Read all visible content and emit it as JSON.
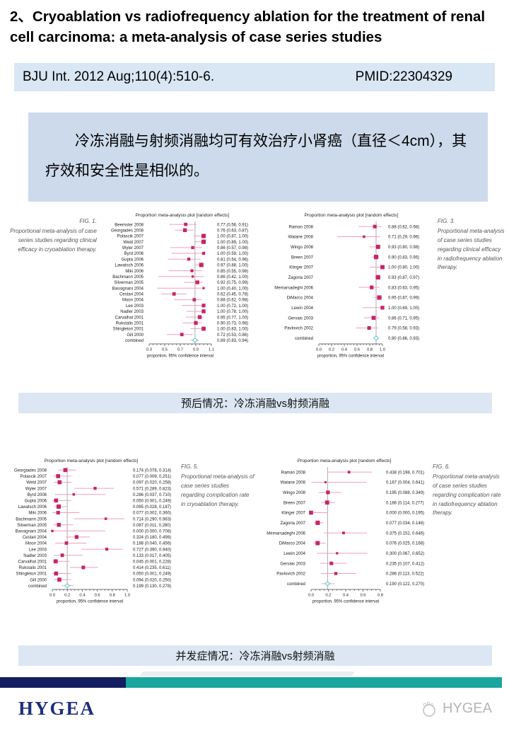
{
  "page": {
    "title": "2、Cryoablation vs radiofrequency ablation for the treatment of renal cell carcinoma: a meta-analysis of case series studies",
    "citation": "BJU Int. 2012 Aug;110(4):510-6.",
    "pmid": "PMID:22304329",
    "summary": "冷冻消融与射频消融均可有效治疗小肾癌（直径＜4cm），其疗效和安全性是相似的。",
    "band1": "预后情况：冷冻消融vs射频消融",
    "band2": "并发症情况：冷冻消融vs射频消融",
    "footer_logo": "HYGEA",
    "watermark": "HYGEA"
  },
  "colors": {
    "marker": "#c4266a",
    "ci_line": "#ef9ec0",
    "combined_diamond": "#5fc1c1",
    "axis": "#444444",
    "ref_line": "#888888",
    "band_bg": "#dce7f3",
    "citation_bg": "#d9e6f3",
    "summary_bg": "#ccdaeb",
    "footer_navy": "#131d60",
    "footer_teal": "#18a69e",
    "logo_navy": "#1e2f7d",
    "watermark_gray": "#b5b5b5"
  },
  "chart_data": [
    {
      "id": "fig1",
      "type": "forest",
      "fig": "FIG. 1.",
      "caption": "Proportional meta-analysis of case series studies regarding clinical efficacy in cryoablation therapy.",
      "title": "Proportion meta-analysis plot [random effects]",
      "xlabel": "proportion, 95% confidence interval",
      "xlim": [
        0.3,
        1.1
      ],
      "xticks": [
        0.3,
        0.5,
        0.7,
        0.9,
        1.1
      ],
      "rows": [
        [
          "Beemster 2008",
          0.77,
          0.56,
          0.91,
          "0.77 (0.56, 0.91)"
        ],
        [
          "Georgiades 2008",
          0.76,
          0.63,
          0.87,
          "0.76 (0.63, 0.87)"
        ],
        [
          "Polascik 2007",
          1.0,
          0.87,
          1.0,
          "1.00 (0.87, 1.00)"
        ],
        [
          "Weld 2007",
          1.0,
          0.89,
          1.0,
          "1.00 (0.89, 1.00)"
        ],
        [
          "Wyler 2007",
          0.86,
          0.57,
          0.98,
          "0.86 (0.57, 0.98)"
        ],
        [
          "Byrd 2006",
          1.0,
          0.59,
          1.0,
          "1.00 (0.59, 1.00)"
        ],
        [
          "Gupta 2006",
          0.81,
          0.54,
          0.96,
          "0.81 (0.54, 0.96)"
        ],
        [
          "Lawatsch 2006",
          0.97,
          0.88,
          1.0,
          "0.97 (0.88, 1.00)"
        ],
        [
          "Miki 2006",
          0.85,
          0.55,
          0.98,
          "0.85 (0.55, 0.98)"
        ],
        [
          "Bachmann 2005",
          0.86,
          0.42,
          1.0,
          "0.86 (0.42, 1.00)"
        ],
        [
          "Silverman 2005",
          0.92,
          0.75,
          0.99,
          "0.92 (0.75, 0.99)"
        ],
        [
          "Bassignani 2004",
          1.0,
          0.4,
          1.0,
          "1.00 (0.40, 1.00)"
        ],
        [
          "Cestari 2004",
          0.62,
          0.45,
          0.78,
          "0.62 (0.45, 0.78)"
        ],
        [
          "Moon 2004",
          0.88,
          0.62,
          0.98,
          "0.88 (0.62, 0.98)"
        ],
        [
          "Lee 2003",
          1.0,
          0.72,
          1.0,
          "1.00 (0.72, 1.00)"
        ],
        [
          "Nadler 2003",
          1.0,
          0.78,
          1.0,
          "1.00 (0.78, 1.00)"
        ],
        [
          "Carvalhal 2001",
          0.95,
          0.77,
          1.0,
          "0.95 (0.77, 1.00)"
        ],
        [
          "Rukstalis 2001",
          0.9,
          0.73,
          0.98,
          "0.90 (0.73, 0.98)"
        ],
        [
          "Shingleton 2001",
          1.0,
          0.83,
          1.0,
          "1.00 (0.83, 1.00)"
        ],
        [
          "Gill 2000",
          0.72,
          0.53,
          0.86,
          "0.72 (0.53, 0.86)"
        ],
        [
          "combined",
          0.89,
          0.83,
          0.94,
          "0.89 (0.83, 0.94)"
        ]
      ]
    },
    {
      "id": "fig3",
      "type": "forest",
      "fig": "FIG. 3.",
      "caption": "Proportional meta-analysis of case series studies regarding clinical efficacy in radiofrequency ablation therapy.",
      "title": "Proportion meta-analysis plot [random effects]",
      "xlabel": "proportion, 95% confidence interval",
      "xlim": [
        0.0,
        1.0
      ],
      "xticks": [
        0.0,
        0.2,
        0.4,
        0.6,
        0.8,
        1.0
      ],
      "rows": [
        [
          "Raman 2008",
          0.88,
          0.62,
          0.98,
          "0.88 (0.62, 0.98)"
        ],
        [
          "Watane 2008",
          0.71,
          0.29,
          0.96,
          "0.71 (0.29, 0.96)"
        ],
        [
          "Wingo 2008",
          0.93,
          0.8,
          0.98,
          "0.93 (0.80, 0.98)"
        ],
        [
          "Breen 2007",
          0.9,
          0.83,
          0.95,
          "0.90 (0.83, 0.95)"
        ],
        [
          "Klinger 2007",
          1.0,
          0.8,
          1.0,
          "1.00 (0.80, 1.00)"
        ],
        [
          "Zagoria 2007",
          0.93,
          0.87,
          0.97,
          "0.93 (0.87, 0.97)"
        ],
        [
          "Memarsadeghi 2006",
          0.83,
          0.63,
          0.95,
          "0.83 (0.63, 0.95)"
        ],
        [
          "DiMarco 2004",
          0.95,
          0.87,
          0.99,
          "0.95 (0.87, 0.99)"
        ],
        [
          "Lewin 2004",
          1.0,
          0.69,
          1.0,
          "1.00 (0.69, 1.00)"
        ],
        [
          "Gervais 2003",
          0.86,
          0.71,
          0.95,
          "0.86 (0.71, 0.95)"
        ],
        [
          "Pavlovich 2002",
          0.79,
          0.58,
          0.93,
          "0.79 (0.58, 0.93)"
        ],
        [
          "combined",
          0.9,
          0.86,
          0.93,
          "0.90 (0.86, 0.93)"
        ]
      ]
    },
    {
      "id": "fig5",
      "type": "forest",
      "fig": "FIG. 5.",
      "caption": "Proportional meta-analysis of case series studies regarding complication rate in cryoablation therapy.",
      "title": "Proportion meta-analysis plot [random effects]",
      "xlabel": "proportion, 95% confidence interval",
      "xlim": [
        0.0,
        1.0
      ],
      "xticks": [
        0.0,
        0.2,
        0.4,
        0.6,
        0.8,
        1.0
      ],
      "rows": [
        [
          "Georgiades 2008",
          0.174,
          0.078,
          0.314,
          "0.174 (0.078, 0.314)"
        ],
        [
          "Polascik 2007",
          0.077,
          0.009,
          0.251,
          "0.077 (0.009, 0.251)"
        ],
        [
          "Weld 2007",
          0.097,
          0.02,
          0.258,
          "0.097 (0.020, 0.258)"
        ],
        [
          "Wyler 2007",
          0.571,
          0.289,
          0.823,
          "0.571 (0.289, 0.823)"
        ],
        [
          "Byrd 2006",
          0.286,
          0.037,
          0.71,
          "0.286 (0.037, 0.710)"
        ],
        [
          "Gupta 2006",
          0.05,
          0.001,
          0.249,
          "0.050 (0.001, 0.249)"
        ],
        [
          "Lawatsch 2006",
          0.085,
          0.028,
          0.187,
          "0.085 (0.028, 0.187)"
        ],
        [
          "Miki 2006",
          0.077,
          0.002,
          0.36,
          "0.077 (0.002, 0.360)"
        ],
        [
          "Bachmann 2005",
          0.714,
          0.29,
          0.963,
          "0.714 (0.290, 0.963)"
        ],
        [
          "Silverman 2005",
          0.087,
          0.011,
          0.28,
          "0.087 (0.011, 0.280)"
        ],
        [
          "Bassignani 2004",
          0.0,
          0.0,
          0.708,
          "0.000 (0.000, 0.708)"
        ],
        [
          "Cestari 2004",
          0.324,
          0.18,
          0.498,
          "0.324 (0.180, 0.498)"
        ],
        [
          "Moon 2004",
          0.188,
          0.04,
          0.456,
          "0.188 (0.040, 0.456)"
        ],
        [
          "Lee 2003",
          0.727,
          0.39,
          0.94,
          "0.727 (0.390, 0.940)"
        ],
        [
          "Nadler 2003",
          0.133,
          0.017,
          0.405,
          "0.133 (0.017, 0.405)"
        ],
        [
          "Carvalhal 2001",
          0.045,
          0.001,
          0.228,
          "0.045 (0.001, 0.228)"
        ],
        [
          "Rukstalis 2001",
          0.414,
          0.235,
          0.611,
          "0.414 (0.235, 0.611)"
        ],
        [
          "Shingleton 2001",
          0.05,
          0.001,
          0.249,
          "0.050 (0.001, 0.249)"
        ],
        [
          "Gill 2000",
          0.094,
          0.02,
          0.25,
          "0.094 (0.020, 0.250)"
        ],
        [
          "combined",
          0.199,
          0.13,
          0.278,
          "0.199 (0.130, 0.278)"
        ]
      ]
    },
    {
      "id": "fig6",
      "type": "forest",
      "fig": "FIG. 6.",
      "caption": "Proportional meta-analysis of case series studies regarding complication rate in radiofrequency ablation therapy.",
      "title": "Proportion meta-analysis plot [random effects]",
      "xlabel": "proportion, 95% confidence interval",
      "xlim": [
        0.0,
        0.8
      ],
      "xticks": [
        0.0,
        0.2,
        0.4,
        0.6,
        0.8
      ],
      "rows": [
        [
          "Raman 2008",
          0.438,
          0.198,
          0.701,
          "0.438 (0.198, 0.701)"
        ],
        [
          "Watane 2008",
          0.167,
          0.004,
          0.641,
          "0.167 (0.004, 0.641)"
        ],
        [
          "Wingo 2008",
          0.195,
          0.088,
          0.349,
          "0.195 (0.088, 0.349)"
        ],
        [
          "Breen 2007",
          0.186,
          0.114,
          0.277,
          "0.186 (0.114, 0.277)"
        ],
        [
          "Klinger 2007",
          0.0,
          0.0,
          0.195,
          "0.000 (0.000, 0.195)"
        ],
        [
          "Zagoria 2007",
          0.077,
          0.034,
          0.146,
          "0.077 (0.034, 0.146)"
        ],
        [
          "Memarsadeghi 2006",
          0.375,
          0.152,
          0.646,
          "0.375 (0.152, 0.646)"
        ],
        [
          "DiMarco 2004",
          0.076,
          0.025,
          0.168,
          "0.076 (0.025, 0.168)"
        ],
        [
          "Lewin 2004",
          0.3,
          0.067,
          0.652,
          "0.300 (0.067, 0.652)"
        ],
        [
          "Gervais 2003",
          0.235,
          0.107,
          0.412,
          "0.235 (0.107, 0.412)"
        ],
        [
          "Pavlovich 2002",
          0.286,
          0.113,
          0.522,
          "0.286 (0.113, 0.522)"
        ],
        [
          "combined",
          0.19,
          0.122,
          0.27,
          "0.190 (0.122, 0.270)"
        ]
      ]
    }
  ]
}
